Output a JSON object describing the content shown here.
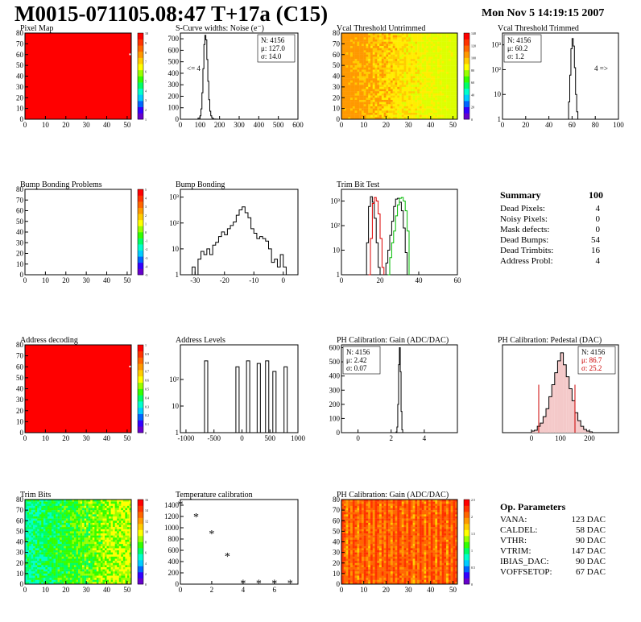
{
  "header": {
    "title": "M0015-071105.08:47 T+17a (C15)",
    "date": "Mon Nov  5 14:19:15 2007"
  },
  "colors": {
    "map_red": "#ff0000",
    "map_white": "#ffffff",
    "histogram_line": "#000000",
    "trim_red": "#dd0000",
    "trim_green": "#00bb00",
    "pedestal_stats": "#cc0000"
  },
  "chart_data": [
    {
      "id": "pixel-map",
      "type": "heatmap",
      "title": "Pixel Map",
      "xlim": [
        0,
        52
      ],
      "ylim": [
        0,
        80
      ],
      "x_ticks": [
        0,
        10,
        20,
        30,
        40,
        50
      ],
      "y_ticks": [
        0,
        10,
        20,
        30,
        40,
        50,
        60,
        70,
        80
      ],
      "colorbar_ticks": [
        1,
        2,
        3,
        4,
        5,
        6,
        7,
        8,
        9,
        10
      ],
      "fill": "uniform red",
      "markers": [
        {
          "x": 51,
          "y": 61
        }
      ]
    },
    {
      "id": "scurve-noise",
      "type": "line",
      "title": "S-Curve widths: Noise (e⁻)",
      "xlim": [
        0,
        600
      ],
      "ylim": [
        0,
        750
      ],
      "x_ticks": [
        0,
        100,
        200,
        300,
        400,
        500,
        600
      ],
      "y_ticks": [
        0,
        100,
        200,
        300,
        400,
        500,
        600,
        700
      ],
      "x": [
        80,
        90,
        100,
        105,
        110,
        115,
        120,
        125,
        130,
        135,
        140,
        145,
        150,
        155,
        160,
        165,
        170,
        180,
        190,
        200,
        250
      ],
      "y": [
        0,
        10,
        30,
        90,
        230,
        440,
        650,
        730,
        690,
        520,
        330,
        170,
        70,
        30,
        12,
        5,
        2,
        1,
        0,
        0,
        2
      ],
      "stats": {
        "N": "4156",
        "mu": "127.0",
        "sigma": "14.0"
      },
      "annotation": "<= 4"
    },
    {
      "id": "vcal-untrimmed",
      "type": "heatmap",
      "title": "Vcal Threshold Untrimmed",
      "xlim": [
        0,
        52
      ],
      "ylim": [
        0,
        80
      ],
      "x_ticks": [
        0,
        10,
        20,
        30,
        40,
        50
      ],
      "y_ticks": [
        0,
        10,
        20,
        30,
        40,
        50,
        60,
        70,
        80
      ],
      "colorbar_ticks": [
        0,
        20,
        40,
        60,
        80,
        100,
        120,
        140
      ],
      "fill": "orange (low x) to yellow (high x) gradient"
    },
    {
      "id": "vcal-trimmed",
      "type": "line",
      "title": "Vcal Threshold Trimmed",
      "log_y": true,
      "xlim": [
        0,
        100
      ],
      "ylim": [
        1,
        3000
      ],
      "x_ticks": [
        0,
        20,
        40,
        60,
        80,
        100
      ],
      "y_ticks": [
        "1",
        "10",
        "10²",
        "10³"
      ],
      "x": [
        56,
        57,
        58,
        59,
        60,
        61,
        62,
        63,
        64,
        65
      ],
      "y": [
        1,
        5,
        60,
        700,
        1800,
        900,
        120,
        10,
        2,
        1
      ],
      "stats": {
        "N": "4156",
        "mu": "60.2",
        "sigma": "1.2"
      },
      "annotation": "4 =>"
    },
    {
      "id": "bump-problems",
      "type": "heatmap",
      "title": "Bump Bonding Problems",
      "xlim": [
        0,
        52
      ],
      "ylim": [
        0,
        80
      ],
      "x_ticks": [
        0,
        10,
        20,
        30,
        40,
        50
      ],
      "y_ticks": [
        0,
        10,
        20,
        30,
        40,
        50,
        60,
        70,
        80
      ],
      "colorbar_ticks": [
        -5,
        -4,
        -3,
        -2,
        -1,
        0,
        1,
        2,
        3,
        4,
        5
      ],
      "fill": "white with few marks"
    },
    {
      "id": "bump-bonding",
      "type": "line",
      "title": "Bump Bonding",
      "log_y": true,
      "xlim": [
        -35,
        5
      ],
      "ylim": [
        1,
        2000
      ],
      "x_ticks": [
        -30,
        -20,
        -10,
        0
      ],
      "y_ticks": [
        "1",
        "10",
        "10²",
        "10³"
      ],
      "x": [
        -32,
        -31,
        -30,
        -29,
        -28,
        -27,
        -26,
        -25,
        -24,
        -23,
        -22,
        -21,
        -20,
        -19,
        -18,
        -17,
        -16,
        -15,
        -14,
        -13,
        -12,
        -11,
        -10,
        -9,
        -8,
        -7,
        -6,
        -5,
        -4,
        -3,
        -2,
        -1,
        0,
        1
      ],
      "y": [
        1,
        2,
        1,
        4,
        8,
        6,
        10,
        6,
        14,
        18,
        30,
        45,
        35,
        60,
        80,
        110,
        200,
        320,
        420,
        250,
        160,
        60,
        40,
        25,
        30,
        25,
        20,
        10,
        3,
        4,
        2,
        6,
        2,
        1
      ]
    },
    {
      "id": "trim-bit-test",
      "type": "line",
      "title": "Trim Bit Test",
      "log_y": true,
      "xlim": [
        0,
        60
      ],
      "ylim": [
        1,
        3000
      ],
      "x_ticks": [
        0,
        20,
        40,
        60
      ],
      "y_ticks": [
        "1",
        "10",
        "10²",
        "10³"
      ],
      "series": [
        {
          "color": "#000000",
          "x": [
            12,
            13,
            14,
            15,
            16,
            17,
            18,
            19,
            20
          ],
          "y": [
            1,
            20,
            600,
            1500,
            900,
            200,
            20,
            2,
            1
          ]
        },
        {
          "color": "#dd0000",
          "x": [
            14,
            15,
            16,
            17,
            18,
            19,
            20,
            21,
            22
          ],
          "y": [
            1,
            30,
            800,
            1400,
            1000,
            300,
            30,
            2,
            1
          ]
        },
        {
          "color": "#000000",
          "x": [
            22,
            23,
            24,
            25,
            26,
            27,
            28,
            29,
            30,
            31,
            32,
            33,
            34
          ],
          "y": [
            1,
            3,
            10,
            40,
            150,
            600,
            1200,
            1300,
            900,
            400,
            80,
            8,
            1
          ]
        },
        {
          "color": "#00bb00",
          "x": [
            24,
            25,
            26,
            27,
            28,
            29,
            30,
            31,
            32,
            33,
            34,
            35
          ],
          "y": [
            1,
            5,
            20,
            60,
            250,
            700,
            1300,
            1400,
            1000,
            400,
            60,
            1
          ]
        }
      ]
    },
    {
      "id": "address-decoding",
      "type": "heatmap",
      "title": "Address decoding",
      "xlim": [
        0,
        52
      ],
      "ylim": [
        0,
        80
      ],
      "x_ticks": [
        0,
        10,
        20,
        30,
        40,
        50
      ],
      "y_ticks": [
        0,
        10,
        20,
        30,
        40,
        50,
        60,
        70,
        80
      ],
      "colorbar_ticks": [
        0,
        0.1,
        0.2,
        0.3,
        0.4,
        0.5,
        0.6,
        0.7,
        0.8,
        0.9,
        1
      ],
      "fill": "uniform red",
      "markers": [
        {
          "x": 51,
          "y": 61
        }
      ]
    },
    {
      "id": "address-levels",
      "type": "line",
      "title": "Address Levels",
      "log_y": true,
      "xlim": [
        -1100,
        1000
      ],
      "ylim": [
        1,
        2000
      ],
      "x_ticks": [
        -1000,
        -500,
        0,
        500,
        1000
      ],
      "y_ticks": [
        "1",
        "10",
        "10²"
      ],
      "peaks": [
        {
          "x": -640,
          "y": 500
        },
        {
          "x": -80,
          "y": 300
        },
        {
          "x": 110,
          "y": 500
        },
        {
          "x": 300,
          "y": 400
        },
        {
          "x": 450,
          "y": 500
        },
        {
          "x": 580,
          "y": 200
        },
        {
          "x": 780,
          "y": 300
        }
      ]
    },
    {
      "id": "ph-gain",
      "type": "line",
      "title": "PH Calibration: Gain (ADC/DAC)",
      "xlim": [
        -1,
        6
      ],
      "ylim": [
        0,
        620
      ],
      "x_ticks": [
        0,
        2,
        4
      ],
      "y_ticks": [
        0,
        100,
        200,
        300,
        400,
        500,
        600
      ],
      "x": [
        2.2,
        2.3,
        2.35,
        2.4,
        2.45,
        2.5,
        2.55,
        2.6,
        2.65,
        2.7
      ],
      "y": [
        0,
        5,
        40,
        200,
        480,
        600,
        430,
        150,
        20,
        0
      ],
      "stats": {
        "N": "4156",
        "mu": "2.42",
        "sigma": "0.07"
      }
    },
    {
      "id": "ph-pedestal",
      "type": "line",
      "title": "PH Calibration: Pedestal (DAC)",
      "xlim": [
        -100,
        300
      ],
      "ylim": [
        0,
        110
      ],
      "x_ticks": [
        0,
        100,
        200
      ],
      "x": [
        -10,
        0,
        10,
        20,
        30,
        40,
        50,
        60,
        70,
        80,
        90,
        100,
        110,
        120,
        130,
        140,
        150,
        160,
        170,
        180,
        190,
        200,
        210
      ],
      "y": [
        0,
        2,
        3,
        8,
        12,
        20,
        30,
        45,
        60,
        75,
        90,
        100,
        85,
        70,
        55,
        40,
        25,
        15,
        8,
        4,
        2,
        1,
        0
      ],
      "cuts": [
        25,
        150
      ],
      "stats": {
        "N": "4156",
        "mu": "86.7",
        "sigma": "25.2"
      }
    },
    {
      "id": "trim-bits",
      "type": "heatmap",
      "title": "Trim Bits",
      "xlim": [
        0,
        52
      ],
      "ylim": [
        0,
        80
      ],
      "x_ticks": [
        0,
        10,
        20,
        30,
        40,
        50
      ],
      "y_ticks": [
        0,
        10,
        20,
        30,
        40,
        50,
        60,
        70,
        80
      ],
      "colorbar_ticks": [
        0,
        2,
        4,
        6,
        8,
        10,
        12,
        14,
        16
      ],
      "fill": "green/cyan mosaic, yellow at right"
    },
    {
      "id": "temperature",
      "type": "scatter",
      "title": "Temperature calibration",
      "xlim": [
        0,
        7.5
      ],
      "ylim": [
        0,
        1500
      ],
      "x_ticks": [
        0,
        2,
        4,
        6
      ],
      "y_ticks": [
        0,
        200,
        400,
        600,
        800,
        1000,
        1200,
        1400
      ],
      "x": [
        0,
        1,
        2,
        3,
        4,
        5,
        6,
        7
      ],
      "y": [
        1420,
        1200,
        900,
        500,
        20,
        20,
        20,
        20
      ]
    },
    {
      "id": "ph-gain-map",
      "type": "heatmap",
      "title": "PH Calibration: Gain (ADC/DAC)",
      "xlim": [
        0,
        52
      ],
      "ylim": [
        0,
        80
      ],
      "x_ticks": [
        0,
        10,
        20,
        30,
        40,
        50
      ],
      "y_ticks": [
        0,
        10,
        20,
        30,
        40,
        50,
        60,
        70,
        80
      ],
      "colorbar_ticks": [
        0,
        0.5,
        1,
        1.5,
        2,
        2.5
      ],
      "fill": "red/orange column stripes"
    }
  ],
  "summary": {
    "title": "Summary",
    "total": "100",
    "rows": [
      {
        "label": "Dead Pixels:",
        "value": "4"
      },
      {
        "label": "Noisy Pixels:",
        "value": "0"
      },
      {
        "label": "Mask defects:",
        "value": "0"
      },
      {
        "label": "Dead Bumps:",
        "value": "54"
      },
      {
        "label": "Dead Trimbits:",
        "value": "16"
      },
      {
        "label": "Address Probl:",
        "value": "4"
      }
    ]
  },
  "op_params": {
    "title": "Op. Parameters",
    "rows": [
      {
        "label": "VANA:",
        "value": "123 DAC"
      },
      {
        "label": "CALDEL:",
        "value": "58 DAC"
      },
      {
        "label": "VTHR:",
        "value": "90 DAC"
      },
      {
        "label": "VTRIM:",
        "value": "147 DAC"
      },
      {
        "label": "IBIAS_DAC:",
        "value": "90 DAC"
      },
      {
        "label": "VOFFSETOP:",
        "value": "67 DAC"
      }
    ]
  }
}
